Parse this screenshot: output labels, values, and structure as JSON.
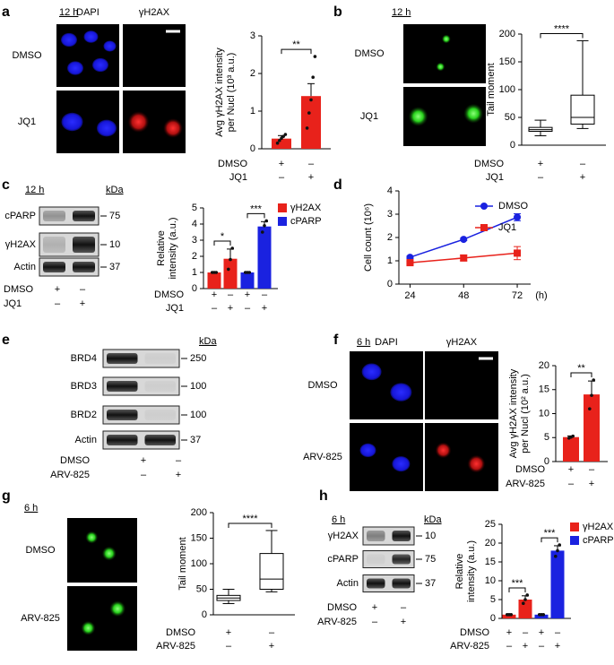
{
  "figure": {
    "panel_labels": [
      "a",
      "b",
      "c",
      "d",
      "e",
      "f",
      "g",
      "h"
    ],
    "images": [
      {
        "time": "12 h",
        "columns": [
          "DAPI",
          "γH2AX"
        ],
        "rows": [
          "DMSO",
          "JQ1"
        ]
      },
      {
        "time": "12 h",
        "rows": [
          "DMSO",
          "JQ1"
        ]
      },
      {
        "time": "6 h",
        "columns": [
          "DAPI",
          "γH2AX"
        ],
        "rows": [
          "DMSO",
          "ARV-825"
        ]
      },
      {
        "time": "6 h",
        "rows": [
          "DMSO",
          "ARV-825"
        ]
      }
    ],
    "blots": [
      {
        "time": "12 h",
        "unit": "kDa",
        "rows": [
          {
            "name": "cPARP",
            "marker": 75
          },
          {
            "name": "γH2AX",
            "marker": 10
          },
          {
            "name": "Actin",
            "marker": 37
          }
        ],
        "treatments": [
          {
            "name": "DMSO",
            "signs": [
              "+",
              "–"
            ]
          },
          {
            "name": "JQ1",
            "signs": [
              "–",
              "+"
            ]
          }
        ]
      },
      {
        "unit": "kDa",
        "rows": [
          {
            "name": "BRD4",
            "marker": 250
          },
          {
            "name": "BRD3",
            "marker": 100
          },
          {
            "name": "BRD2",
            "marker": 100
          },
          {
            "name": "Actin",
            "marker": 37
          }
        ],
        "treatments": [
          {
            "name": "DMSO",
            "signs": [
              "+",
              "–"
            ]
          },
          {
            "name": "ARV-825",
            "signs": [
              "–",
              "+"
            ]
          }
        ]
      },
      {
        "time": "6 h",
        "unit": "kDa",
        "rows": [
          {
            "name": "γH2AX",
            "marker": 10
          },
          {
            "name": "cPARP",
            "marker": 75
          },
          {
            "name": "Actin",
            "marker": 37
          }
        ],
        "treatments": [
          {
            "name": "DMSO",
            "signs": [
              "+",
              "–"
            ]
          },
          {
            "name": "ARV-825",
            "signs": [
              "–",
              "+"
            ]
          }
        ]
      }
    ]
  },
  "chart_data": [
    {
      "type": "bar",
      "ylabel": [
        "Avg γH2AX intensity",
        "per Nucl (10³ a.u.)"
      ],
      "ylim": [
        0,
        3
      ],
      "yticks": [
        0,
        1,
        2,
        3
      ],
      "series": [
        {
          "color": "#e8221b",
          "values": [
            0.27,
            1.4
          ],
          "errors": [
            0.08,
            0.33
          ],
          "points": [
            [
              0.15,
              0.22,
              0.28,
              0.33,
              0.38
            ],
            [
              0.55,
              0.95,
              1.3,
              1.9,
              2.45
            ]
          ]
        }
      ],
      "significance": [
        "**"
      ],
      "treatments": [
        {
          "name": "DMSO",
          "signs": [
            "+",
            "–"
          ]
        },
        {
          "name": "JQ1",
          "signs": [
            "–",
            "+"
          ]
        }
      ]
    },
    {
      "type": "box",
      "ylabel": [
        "Tail moment"
      ],
      "ylim": [
        0,
        200
      ],
      "yticks": [
        0,
        50,
        100,
        150,
        200
      ],
      "boxes": [
        {
          "whisker_low": 17,
          "q1": 25,
          "median": 28,
          "q3": 32,
          "whisker_high": 45
        },
        {
          "whisker_low": 30,
          "q1": 38,
          "median": 50,
          "q3": 90,
          "whisker_high": 188
        }
      ],
      "significance": [
        "****"
      ],
      "treatments": [
        {
          "name": "DMSO",
          "signs": [
            "+",
            "–"
          ]
        },
        {
          "name": "JQ1",
          "signs": [
            "–",
            "+"
          ]
        }
      ]
    },
    {
      "type": "bar",
      "ylabel": [
        "Relative",
        "intensity (a.u.)"
      ],
      "ylim": [
        0,
        5
      ],
      "yticks": [
        0,
        1,
        2,
        3,
        4,
        5
      ],
      "legend": true,
      "series": [
        {
          "name": "γH2AX",
          "color": "#e8221b",
          "values": [
            1,
            1.85
          ],
          "errors": [
            0.03,
            0.6
          ],
          "points": [
            [
              1,
              1,
              1
            ],
            [
              1.2,
              1.8,
              2.5
            ]
          ]
        },
        {
          "name": "cPARP",
          "color": "#1a22e0",
          "values": [
            1,
            3.85
          ],
          "errors": [
            0.03,
            0.3
          ],
          "points": [
            [
              1,
              1,
              1
            ],
            [
              3.5,
              3.9,
              4.2
            ]
          ]
        }
      ],
      "significance": [
        "*",
        "***"
      ],
      "treatments": [
        {
          "name": "DMSO",
          "signs": [
            "+",
            "–",
            "+",
            "–"
          ]
        },
        {
          "name": "JQ1",
          "signs": [
            "–",
            "+",
            "–",
            "+"
          ]
        }
      ]
    },
    {
      "type": "line",
      "ylabel": [
        "Cell count (10⁶)"
      ],
      "xlabel": "(h)",
      "x": [
        24,
        48,
        72
      ],
      "xlim": [
        19,
        78
      ],
      "xticks": [
        24,
        48,
        72
      ],
      "ylim": [
        0,
        4
      ],
      "yticks": [
        0,
        1,
        2,
        3,
        4
      ],
      "legend": true,
      "series": [
        {
          "name": "DMSO",
          "color": "#1a22e0",
          "marker": "circle",
          "values": [
            1.15,
            1.92,
            2.87
          ],
          "errors": [
            0.05,
            0.05,
            0.15
          ]
        },
        {
          "name": "JQ1",
          "color": "#e8221b",
          "marker": "square",
          "values": [
            0.92,
            1.12,
            1.33
          ],
          "errors": [
            0.05,
            0.12,
            0.28
          ]
        }
      ]
    },
    {
      "type": "bar",
      "ylabel": [
        "Avg γH2AX intensity",
        "per Nucl (10² a.u.)"
      ],
      "ylim": [
        0,
        20
      ],
      "yticks": [
        0,
        5,
        10,
        15,
        20
      ],
      "series": [
        {
          "color": "#e8221b",
          "values": [
            5.1,
            14
          ],
          "errors": [
            0.25,
            2.8
          ],
          "points": [
            [
              4.9,
              5.1,
              5.3
            ],
            [
              11,
              13.8,
              17
            ]
          ]
        }
      ],
      "significance": [
        "**"
      ],
      "treatments": [
        {
          "name": "DMSO",
          "signs": [
            "+",
            "–"
          ]
        },
        {
          "name": "ARV-825",
          "signs": [
            "–",
            "+"
          ]
        }
      ]
    },
    {
      "type": "box",
      "ylabel": [
        "Tail moment"
      ],
      "ylim": [
        0,
        200
      ],
      "yticks": [
        0,
        50,
        100,
        150,
        200
      ],
      "boxes": [
        {
          "whisker_low": 22,
          "q1": 28,
          "median": 33,
          "q3": 38,
          "whisker_high": 50
        },
        {
          "whisker_low": 45,
          "q1": 50,
          "median": 70,
          "q3": 120,
          "whisker_high": 165
        }
      ],
      "significance": [
        "****"
      ],
      "treatments": [
        {
          "name": "DMSO",
          "signs": [
            "+",
            "–"
          ]
        },
        {
          "name": "ARV-825",
          "signs": [
            "–",
            "+"
          ]
        }
      ]
    },
    {
      "type": "bar",
      "ylabel": [
        "Relative",
        "intensity (a.u.)"
      ],
      "ylim": [
        0,
        25
      ],
      "yticks": [
        0,
        5,
        10,
        15,
        20,
        25
      ],
      "legend": true,
      "series": [
        {
          "name": "γH2AX",
          "color": "#e8221b",
          "values": [
            1,
            5
          ],
          "errors": [
            0.1,
            1
          ],
          "points": [
            [
              1,
              1,
              1
            ],
            [
              4,
              5,
              6.2
            ]
          ]
        },
        {
          "name": "cPARP",
          "color": "#1a22e0",
          "values": [
            1,
            18
          ],
          "errors": [
            0.1,
            1.3
          ],
          "points": [
            [
              1,
              1,
              1
            ],
            [
              16.5,
              18,
              19.5
            ]
          ]
        }
      ],
      "significance": [
        "***",
        "***"
      ],
      "treatments": [
        {
          "name": "DMSO",
          "signs": [
            "+",
            "–",
            "+",
            "–"
          ]
        },
        {
          "name": "ARV-825",
          "signs": [
            "–",
            "+",
            "–",
            "+"
          ]
        }
      ]
    }
  ]
}
